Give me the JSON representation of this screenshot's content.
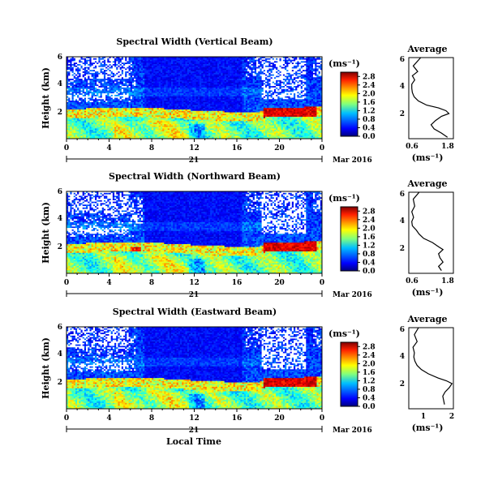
{
  "figure": {
    "xlabel": "Local Time",
    "date_label": "Mar 2016",
    "day_label": "21"
  },
  "chart_data": [
    {
      "type": "heatmap",
      "title": "Spectral Width (Vertical Beam)",
      "xlabel": "Local Time",
      "ylabel": "Height (km)",
      "x_ticks": [
        "0",
        "4",
        "8",
        "12",
        "16",
        "20",
        "0"
      ],
      "y_ticks": [
        "2",
        "4",
        "6"
      ],
      "xlim": [
        0,
        24
      ],
      "ylim": [
        0.2,
        6
      ],
      "colorbar": {
        "title": "(ms⁻¹)",
        "ticks": [
          "0.0",
          "0.4",
          "0.8",
          "1.2",
          "1.6",
          "2.0",
          "2.4",
          "2.8"
        ],
        "range": [
          0,
          3.0
        ]
      }
    },
    {
      "type": "line",
      "title": "Average",
      "xlabel": "(ms⁻¹)",
      "x_ticks": [
        "0.6",
        "1.8"
      ],
      "xlim": [
        0.5,
        2.0
      ],
      "y_ticks": [
        "2",
        "4",
        "6"
      ],
      "ylim": [
        0.2,
        6
      ],
      "profile": {
        "height": [
          6.0,
          5.4,
          5.0,
          4.7,
          4.4,
          4.1,
          3.8,
          3.5,
          3.2,
          2.9,
          2.6,
          2.4,
          2.2,
          2.0,
          1.8,
          1.5,
          1.2,
          0.9,
          0.6,
          0.3
        ],
        "value": [
          0.9,
          0.65,
          0.8,
          0.62,
          0.7,
          0.6,
          0.6,
          0.62,
          0.68,
          0.82,
          1.1,
          1.5,
          1.75,
          1.85,
          1.6,
          1.4,
          1.25,
          1.35,
          1.6,
          1.8
        ]
      }
    },
    {
      "type": "heatmap",
      "title": "Spectral Width (Northward Beam)",
      "xlabel": "Local Time",
      "ylabel": "Height (km)",
      "x_ticks": [
        "0",
        "4",
        "8",
        "12",
        "16",
        "20",
        "0"
      ],
      "y_ticks": [
        "2",
        "4",
        "6"
      ],
      "xlim": [
        0,
        24
      ],
      "ylim": [
        0.2,
        6
      ],
      "colorbar": {
        "title": "(ms⁻¹)",
        "ticks": [
          "0.0",
          "0.4",
          "0.8",
          "1.2",
          "1.6",
          "2.0",
          "2.4",
          "2.8"
        ],
        "range": [
          0,
          3.0
        ]
      }
    },
    {
      "type": "line",
      "title": "Average",
      "xlabel": "(ms⁻¹)",
      "x_ticks": [
        "0.6",
        "1.8"
      ],
      "xlim": [
        0.5,
        2.0
      ],
      "y_ticks": [
        "2",
        "4",
        "6"
      ],
      "ylim": [
        0.2,
        6
      ],
      "profile": {
        "height": [
          6.0,
          5.5,
          5.0,
          4.6,
          4.2,
          3.9,
          3.6,
          3.3,
          3.0,
          2.7,
          2.4,
          2.1,
          1.9,
          1.6,
          1.3,
          1.0,
          0.7,
          0.4
        ],
        "value": [
          0.85,
          0.65,
          0.7,
          0.6,
          0.66,
          0.6,
          0.62,
          0.75,
          0.85,
          1.0,
          1.3,
          1.5,
          1.65,
          1.5,
          1.55,
          1.65,
          1.5,
          1.6
        ]
      }
    },
    {
      "type": "heatmap",
      "title": "Spectral Width (Eastward Beam)",
      "xlabel": "Local Time",
      "ylabel": "Height (km)",
      "x_ticks": [
        "0",
        "4",
        "8",
        "12",
        "16",
        "20",
        "0"
      ],
      "y_ticks": [
        "2",
        "4",
        "6"
      ],
      "xlim": [
        0,
        24
      ],
      "ylim": [
        0.2,
        6
      ],
      "colorbar": {
        "title": "(ms⁻¹)",
        "ticks": [
          "0.0",
          "0.4",
          "0.8",
          "1.2",
          "1.6",
          "2.0",
          "2.4",
          "2.8"
        ],
        "range": [
          0,
          3.0
        ]
      }
    },
    {
      "type": "line",
      "title": "Average",
      "xlabel": "(ms⁻¹)",
      "x_ticks": [
        "1",
        "2"
      ],
      "xlim": [
        0.4,
        2.0
      ],
      "y_ticks": [
        "2",
        "4",
        "6"
      ],
      "ylim": [
        0.2,
        6
      ],
      "profile": {
        "height": [
          6.0,
          5.5,
          5.0,
          4.6,
          4.2,
          3.9,
          3.6,
          3.3,
          3.0,
          2.7,
          2.4,
          2.2,
          2.0,
          1.7,
          1.4,
          1.1,
          0.8,
          0.5
        ],
        "value": [
          0.75,
          0.6,
          0.7,
          0.55,
          0.6,
          0.58,
          0.62,
          0.7,
          0.85,
          1.1,
          1.45,
          1.75,
          1.95,
          1.85,
          1.7,
          1.62,
          1.65,
          1.68
        ]
      }
    }
  ]
}
